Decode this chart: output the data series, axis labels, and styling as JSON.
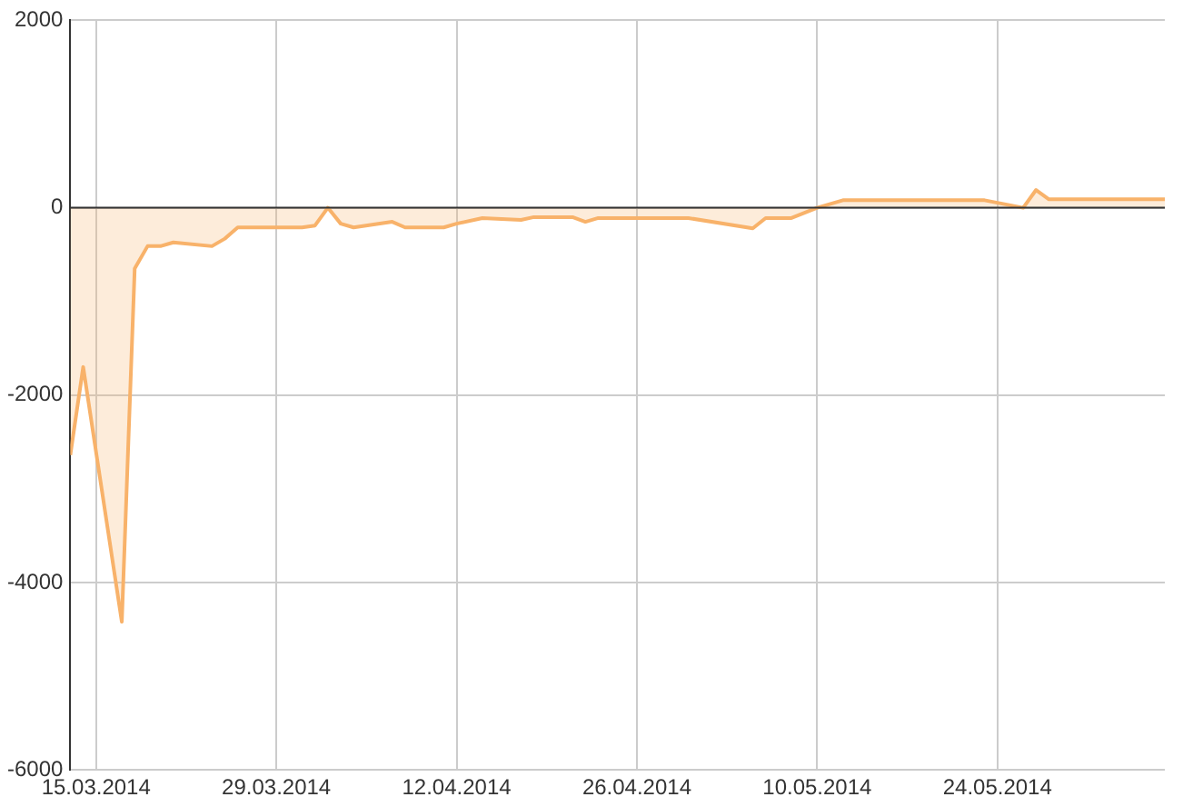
{
  "chart_data": {
    "type": "area",
    "x": [
      "2014-03-13",
      "2014-03-14",
      "2014-03-17",
      "2014-03-18",
      "2014-03-19",
      "2014-03-20",
      "2014-03-21",
      "2014-03-24",
      "2014-03-25",
      "2014-03-26",
      "2014-03-31",
      "2014-04-01",
      "2014-04-02",
      "2014-04-03",
      "2014-04-04",
      "2014-04-07",
      "2014-04-08",
      "2014-04-11",
      "2014-04-12",
      "2014-04-14",
      "2014-04-17",
      "2014-04-18",
      "2014-04-21",
      "2014-04-22",
      "2014-04-23",
      "2014-04-30",
      "2014-05-05",
      "2014-05-06",
      "2014-05-08",
      "2014-05-10",
      "2014-05-12",
      "2014-05-23",
      "2014-05-26",
      "2014-05-27",
      "2014-05-28",
      "2014-06-06"
    ],
    "series": [
      {
        "color": "#f8b26a",
        "values": [
          -2640,
          -1700,
          -4420,
          -650,
          -410,
          -410,
          -370,
          -410,
          -330,
          -210,
          -210,
          -190,
          0,
          -170,
          -210,
          -150,
          -210,
          -210,
          -170,
          -110,
          -130,
          -100,
          -100,
          -150,
          -110,
          -110,
          -220,
          -110,
          -110,
          0,
          80,
          80,
          0,
          190,
          90,
          90
        ]
      }
    ],
    "xlim": [
      "2014-03-13",
      "2014-06-06"
    ],
    "xticks": [
      {
        "value": "2014-03-15",
        "label": "15.03.2014"
      },
      {
        "value": "2014-03-29",
        "label": "29.03.2014"
      },
      {
        "value": "2014-04-12",
        "label": "12.04.2014"
      },
      {
        "value": "2014-04-26",
        "label": "26.04.2014"
      },
      {
        "value": "2014-05-10",
        "label": "10.05.2014"
      },
      {
        "value": "2014-05-24",
        "label": "24.05.2014"
      }
    ],
    "ylim": [
      -6000,
      2000
    ],
    "yticks": [
      -6000,
      -4000,
      -2000,
      0,
      2000
    ],
    "ref_lines": [
      {
        "axis": "y",
        "value": 0,
        "color": "#333333"
      }
    ],
    "grid": true,
    "legend": false,
    "marker": "none"
  }
}
